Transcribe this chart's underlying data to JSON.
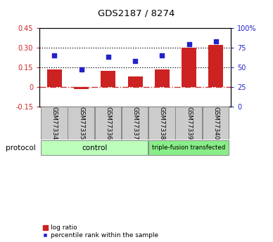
{
  "title": "GDS2187 / 8274",
  "samples": [
    "GSM77334",
    "GSM77335",
    "GSM77336",
    "GSM77337",
    "GSM77338",
    "GSM77339",
    "GSM77340"
  ],
  "log_ratio": [
    0.13,
    -0.02,
    0.12,
    0.08,
    0.13,
    0.3,
    0.32
  ],
  "percentile_rank": [
    65,
    47,
    63,
    58,
    65,
    79,
    83
  ],
  "ylim_left": [
    -0.15,
    0.45
  ],
  "ylim_right": [
    0,
    100
  ],
  "yticks_left": [
    -0.15,
    0,
    0.15,
    0.3,
    0.45
  ],
  "yticks_right": [
    0,
    25,
    50,
    75,
    100
  ],
  "yticklabels_left": [
    "-0.15",
    "0",
    "0.15",
    "0.30",
    "0.45"
  ],
  "yticklabels_right": [
    "0",
    "25",
    "50",
    "75",
    "100%"
  ],
  "hlines": [
    0.15,
    0.3
  ],
  "bar_color": "#cc2222",
  "scatter_color": "#2222cc",
  "zero_line_color": "#cc3333",
  "control_samples": [
    "GSM77334",
    "GSM77335",
    "GSM77336",
    "GSM77337"
  ],
  "treated_samples": [
    "GSM77338",
    "GSM77339",
    "GSM77340"
  ],
  "control_label": "control",
  "treated_label": "triple-fusion transfected",
  "protocol_label": "protocol",
  "legend_bar_label": "log ratio",
  "legend_scatter_label": "percentile rank within the sample",
  "control_color": "#bbffbb",
  "treated_color": "#88ee88",
  "sample_box_color": "#cccccc",
  "bg_color": "#ffffff"
}
